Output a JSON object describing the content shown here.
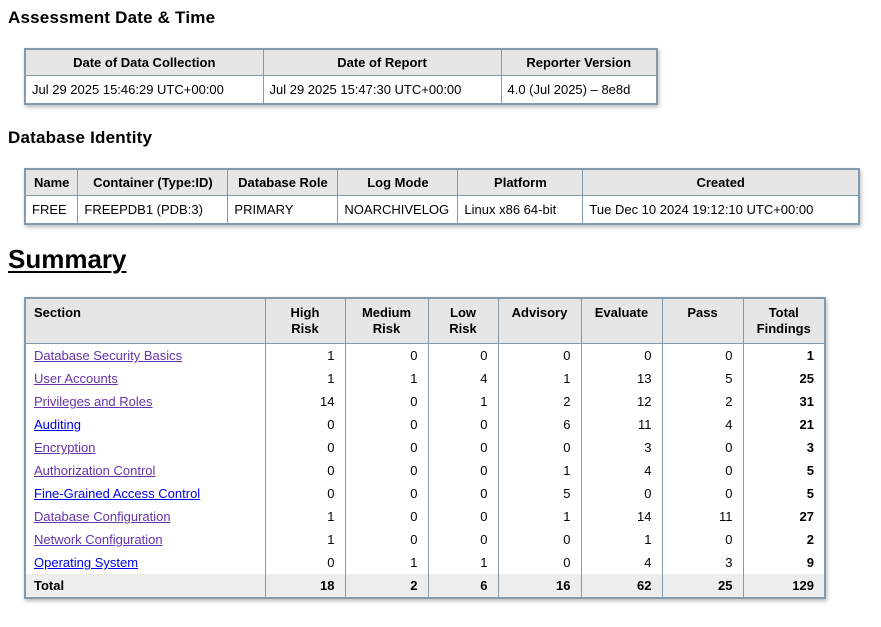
{
  "headings": {
    "assessment": "Assessment Date & Time",
    "identity": "Database Identity",
    "summary": "Summary"
  },
  "assessment_table": {
    "headers": [
      "Date of Data Collection",
      "Date of Report",
      "Reporter Version"
    ],
    "row": [
      "Jul 29 2025 15:46:29 UTC+00:00",
      "Jul 29 2025 15:47:30 UTC+00:00",
      "4.0 (Jul 2025) – 8e8d"
    ]
  },
  "identity_table": {
    "headers": [
      "Name",
      "Container (Type:ID)",
      "Database Role",
      "Log Mode",
      "Platform",
      "Created"
    ],
    "row": [
      "FREE",
      "FREEPDB1 (PDB:3)",
      "PRIMARY",
      "NOARCHIVELOG",
      "Linux x86 64-bit",
      "Tue Dec 10 2024 19:12:10 UTC+00:00"
    ]
  },
  "summary_table": {
    "headers": [
      "Section",
      "High\nRisk",
      "Medium\nRisk",
      "Low\nRisk",
      "Advisory",
      "Evaluate",
      "Pass",
      "Total\nFindings"
    ],
    "rows": [
      {
        "section": "Database Security Basics",
        "visited": true,
        "values": [
          1,
          0,
          0,
          0,
          0,
          0,
          1
        ]
      },
      {
        "section": "User Accounts",
        "visited": true,
        "values": [
          1,
          1,
          4,
          1,
          13,
          5,
          25
        ]
      },
      {
        "section": "Privileges and Roles",
        "visited": true,
        "values": [
          14,
          0,
          1,
          2,
          12,
          2,
          31
        ]
      },
      {
        "section": "Auditing",
        "visited": false,
        "values": [
          0,
          0,
          0,
          6,
          11,
          4,
          21
        ]
      },
      {
        "section": "Encryption",
        "visited": true,
        "values": [
          0,
          0,
          0,
          0,
          3,
          0,
          3
        ]
      },
      {
        "section": "Authorization Control",
        "visited": true,
        "values": [
          0,
          0,
          0,
          1,
          4,
          0,
          5
        ]
      },
      {
        "section": "Fine-Grained Access Control",
        "visited": false,
        "values": [
          0,
          0,
          0,
          5,
          0,
          0,
          5
        ]
      },
      {
        "section": "Database Configuration",
        "visited": true,
        "values": [
          1,
          0,
          0,
          1,
          14,
          11,
          27
        ]
      },
      {
        "section": "Network Configuration",
        "visited": true,
        "values": [
          1,
          0,
          0,
          0,
          1,
          0,
          2
        ]
      },
      {
        "section": "Operating System",
        "visited": false,
        "values": [
          0,
          1,
          1,
          0,
          4,
          3,
          9
        ]
      }
    ],
    "total_row": {
      "label": "Total",
      "values": [
        18,
        2,
        6,
        16,
        62,
        25,
        129
      ]
    }
  },
  "colors": {
    "link_unvisited": "#0000ee",
    "link_visited": "#6633aa",
    "table_border": "#829aab",
    "header_bg": "#e6e6e6",
    "total_row_bg": "#ededed"
  }
}
